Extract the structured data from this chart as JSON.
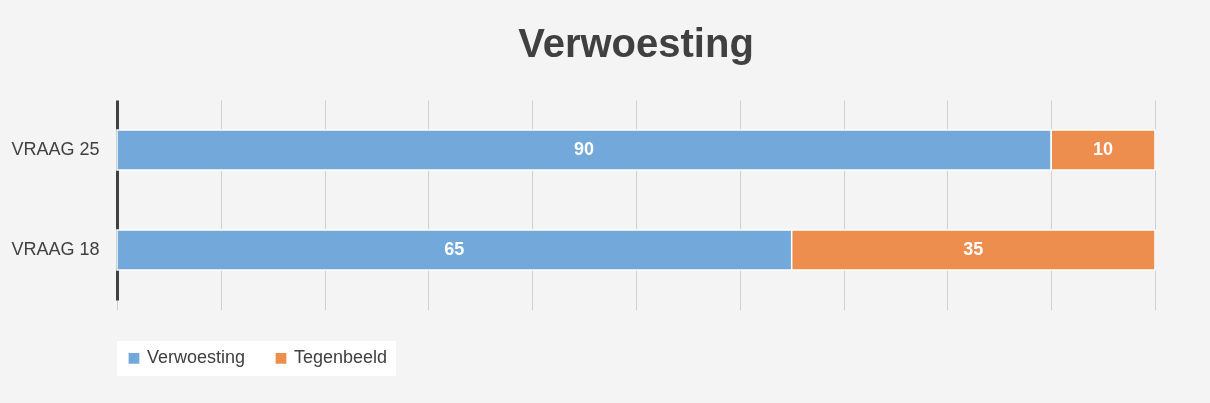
{
  "chart_data": {
    "type": "bar",
    "title": "Verwoesting",
    "orientation": "horizontal",
    "stacked": true,
    "categories": [
      "VRAAG 25",
      "VRAAG 18"
    ],
    "series": [
      {
        "name": "Verwoesting",
        "color": "#72a9da",
        "values": [
          90,
          65
        ]
      },
      {
        "name": "Tegenbeeld",
        "color": "#ed8d4e",
        "values": [
          10,
          35
        ]
      }
    ],
    "xlim": [
      0,
      100
    ],
    "xticks": [
      {
        "value": 0,
        "label": null
      },
      {
        "value": 10,
        "label": null
      },
      {
        "value": 20,
        "label": null
      },
      {
        "value": 30,
        "label": null
      },
      {
        "value": 40,
        "label": null
      },
      {
        "value": 50,
        "label": null
      },
      {
        "value": 60,
        "label": null
      },
      {
        "value": 70,
        "label": null
      },
      {
        "value": 80,
        "label": null
      },
      {
        "value": 90,
        "label": null
      },
      {
        "value": 100,
        "label": null
      }
    ],
    "tick_labels": "y",
    "grid": "x",
    "legend": "bottom",
    "data_labels": true
  }
}
